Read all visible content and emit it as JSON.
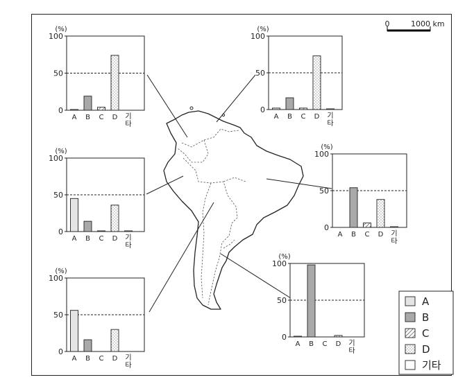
{
  "scale_bar": {
    "zero": "0",
    "distance": "1000",
    "unit": "km"
  },
  "axis": {
    "unit": "(%)",
    "ticks": [
      "0",
      "50",
      "100"
    ]
  },
  "categories": [
    "A",
    "B",
    "C",
    "D",
    "기타"
  ],
  "legend": [
    {
      "key": "A",
      "label": "A",
      "fill": "#e4e4e4"
    },
    {
      "key": "B",
      "label": "B",
      "fill": "#a9a9a9"
    },
    {
      "key": "C",
      "label": "C",
      "fill": "hatch"
    },
    {
      "key": "D",
      "label": "D",
      "fill": "dots"
    },
    {
      "key": "other",
      "label": "기타",
      "fill": "#ffffff"
    }
  ],
  "chart_data": [
    {
      "type": "bar",
      "position": "north-west",
      "categories": [
        "A",
        "B",
        "C",
        "D",
        "기타"
      ],
      "values": [
        1,
        19,
        4,
        74,
        0
      ],
      "ylim": [
        0,
        100
      ],
      "reference_line": 50
    },
    {
      "type": "bar",
      "position": "north-east",
      "categories": [
        "A",
        "B",
        "C",
        "D",
        "기타"
      ],
      "values": [
        2,
        16,
        2,
        73,
        1
      ],
      "ylim": [
        0,
        100
      ],
      "reference_line": 50
    },
    {
      "type": "bar",
      "position": "west",
      "categories": [
        "A",
        "B",
        "C",
        "D",
        "기타"
      ],
      "values": [
        45,
        14,
        1,
        36,
        1
      ],
      "ylim": [
        0,
        100
      ],
      "reference_line": 50
    },
    {
      "type": "bar",
      "position": "east",
      "categories": [
        "A",
        "B",
        "C",
        "D",
        "기타"
      ],
      "values": [
        0,
        54,
        6,
        38,
        1
      ],
      "ylim": [
        0,
        100
      ],
      "reference_line": 50
    },
    {
      "type": "bar",
      "position": "south-west",
      "categories": [
        "A",
        "B",
        "C",
        "D",
        "기타"
      ],
      "values": [
        56,
        16,
        0,
        30,
        0
      ],
      "ylim": [
        0,
        100
      ],
      "reference_line": 50
    },
    {
      "type": "bar",
      "position": "south-east",
      "categories": [
        "A",
        "B",
        "C",
        "D",
        "기타"
      ],
      "values": [
        1,
        98,
        0,
        2,
        0
      ],
      "ylim": [
        0,
        100
      ],
      "reference_line": 50
    }
  ]
}
